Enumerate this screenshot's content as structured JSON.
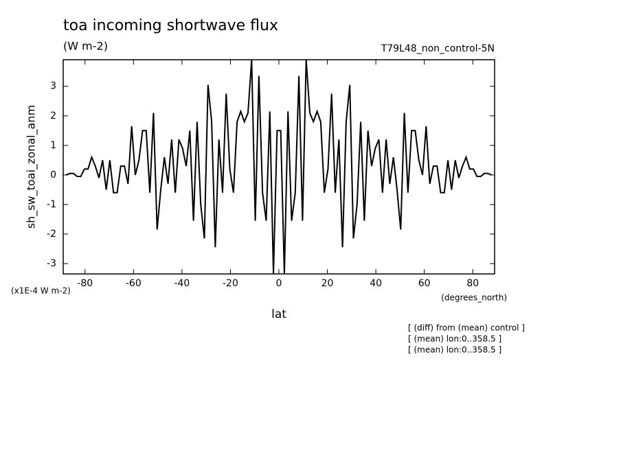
{
  "chart_data": {
    "type": "line",
    "title": "toa incoming shortwave flux",
    "subtitle": "(W m-2)",
    "annotation": "T79L48_non_control-5N",
    "ylabel": "sh_sw_toai_zonal_anm",
    "yunits": "(x1E-4 W m-2)",
    "xunits": "(degrees_north)",
    "xlabel": "lat",
    "notes": [
      "[ (diff) from (mean) control ]",
      "[ (mean) lon:0..358.5 ]",
      "[ (mean) lon:0..358.5 ]"
    ],
    "x": [
      -87.75,
      -86.25,
      -84.75,
      -83.25,
      -81.75,
      -80.25,
      -78.75,
      -77.25,
      -75.75,
      -74.25,
      -72.75,
      -71.25,
      -69.75,
      -68.25,
      -66.75,
      -65.25,
      -63.75,
      -62.25,
      -60.75,
      -59.25,
      -57.75,
      -56.25,
      -54.75,
      -53.25,
      -51.75,
      -50.25,
      -48.75,
      -47.25,
      -45.75,
      -44.25,
      -42.75,
      -41.25,
      -39.75,
      -38.25,
      -36.75,
      -35.25,
      -33.75,
      -32.25,
      -30.75,
      -29.25,
      -27.75,
      -26.25,
      -24.75,
      -23.25,
      -21.75,
      -20.25,
      -18.75,
      -17.25,
      -15.75,
      -14.25,
      -12.75,
      -11.25,
      -9.75,
      -8.25,
      -6.75,
      -5.25,
      -3.75,
      -2.25,
      -0.75,
      0.75,
      2.25,
      3.75,
      5.25,
      6.75,
      8.25,
      9.75,
      11.25,
      12.75,
      14.25,
      15.75,
      17.25,
      18.75,
      20.25,
      21.75,
      23.25,
      24.75,
      26.25,
      27.75,
      29.25,
      30.75,
      32.25,
      33.75,
      35.25,
      36.75,
      38.25,
      39.75,
      41.25,
      42.75,
      44.25,
      45.75,
      47.25,
      48.75,
      50.25,
      51.75,
      53.25,
      54.75,
      56.25,
      57.75,
      59.25,
      60.75,
      62.25,
      63.75,
      65.25,
      66.75,
      68.25,
      69.75,
      71.25,
      72.75,
      74.25,
      75.75,
      77.25,
      78.75,
      80.25,
      81.75,
      83.25,
      84.75,
      86.25,
      87.75
    ],
    "series": [
      {
        "name": "sh_sw_toai_zonal_anm",
        "color": "#000000",
        "values": [
          0.0,
          0.05,
          0.05,
          -0.05,
          -0.05,
          0.2,
          0.2,
          0.6,
          0.3,
          -0.1,
          0.5,
          -0.5,
          0.5,
          -0.6,
          -0.6,
          0.3,
          0.3,
          -0.3,
          1.65,
          0,
          0.5,
          1.5,
          1.5,
          -0.6,
          2.1,
          -1.85,
          -0.5,
          0.6,
          -0.3,
          1.2,
          -0.6,
          1.2,
          0.9,
          0.3,
          1.5,
          -1.55,
          1.8,
          -1.0,
          -2.15,
          3.05,
          1.8,
          -2.45,
          1.2,
          -0.6,
          2.75,
          0.2,
          -0.6,
          1.8,
          2.15,
          1.8,
          2.1,
          3.9,
          -1.55,
          3.35,
          -0.6,
          -1.55,
          2.15,
          -3.35,
          1.5,
          1.5,
          -3.35,
          2.15,
          -1.55,
          -0.6,
          3.35,
          -1.55,
          3.9,
          2.1,
          1.8,
          2.15,
          1.8,
          -0.6,
          0.2,
          2.75,
          -0.6,
          1.2,
          -2.45,
          1.8,
          3.05,
          -2.15,
          -1.0,
          1.8,
          -1.55,
          1.5,
          0.3,
          0.9,
          1.2,
          -0.6,
          1.2,
          -0.3,
          0.6,
          -0.5,
          -1.85,
          2.1,
          -0.6,
          1.5,
          1.5,
          0.5,
          0,
          1.65,
          -0.3,
          0.3,
          0.3,
          -0.6,
          -0.6,
          0.5,
          -0.5,
          0.5,
          -0.1,
          0.3,
          0.6,
          0.2,
          0.2,
          -0.05,
          -0.05,
          0.05,
          0.05,
          0.0
        ]
      }
    ],
    "xlim": [
      -89,
      89
    ],
    "ylim": [
      -3.35,
      3.9
    ],
    "xticks": [
      -80,
      -60,
      -40,
      -20,
      0,
      20,
      40,
      60,
      80
    ],
    "yticks": [
      -3,
      -2,
      -1,
      0,
      1,
      2,
      3
    ]
  }
}
